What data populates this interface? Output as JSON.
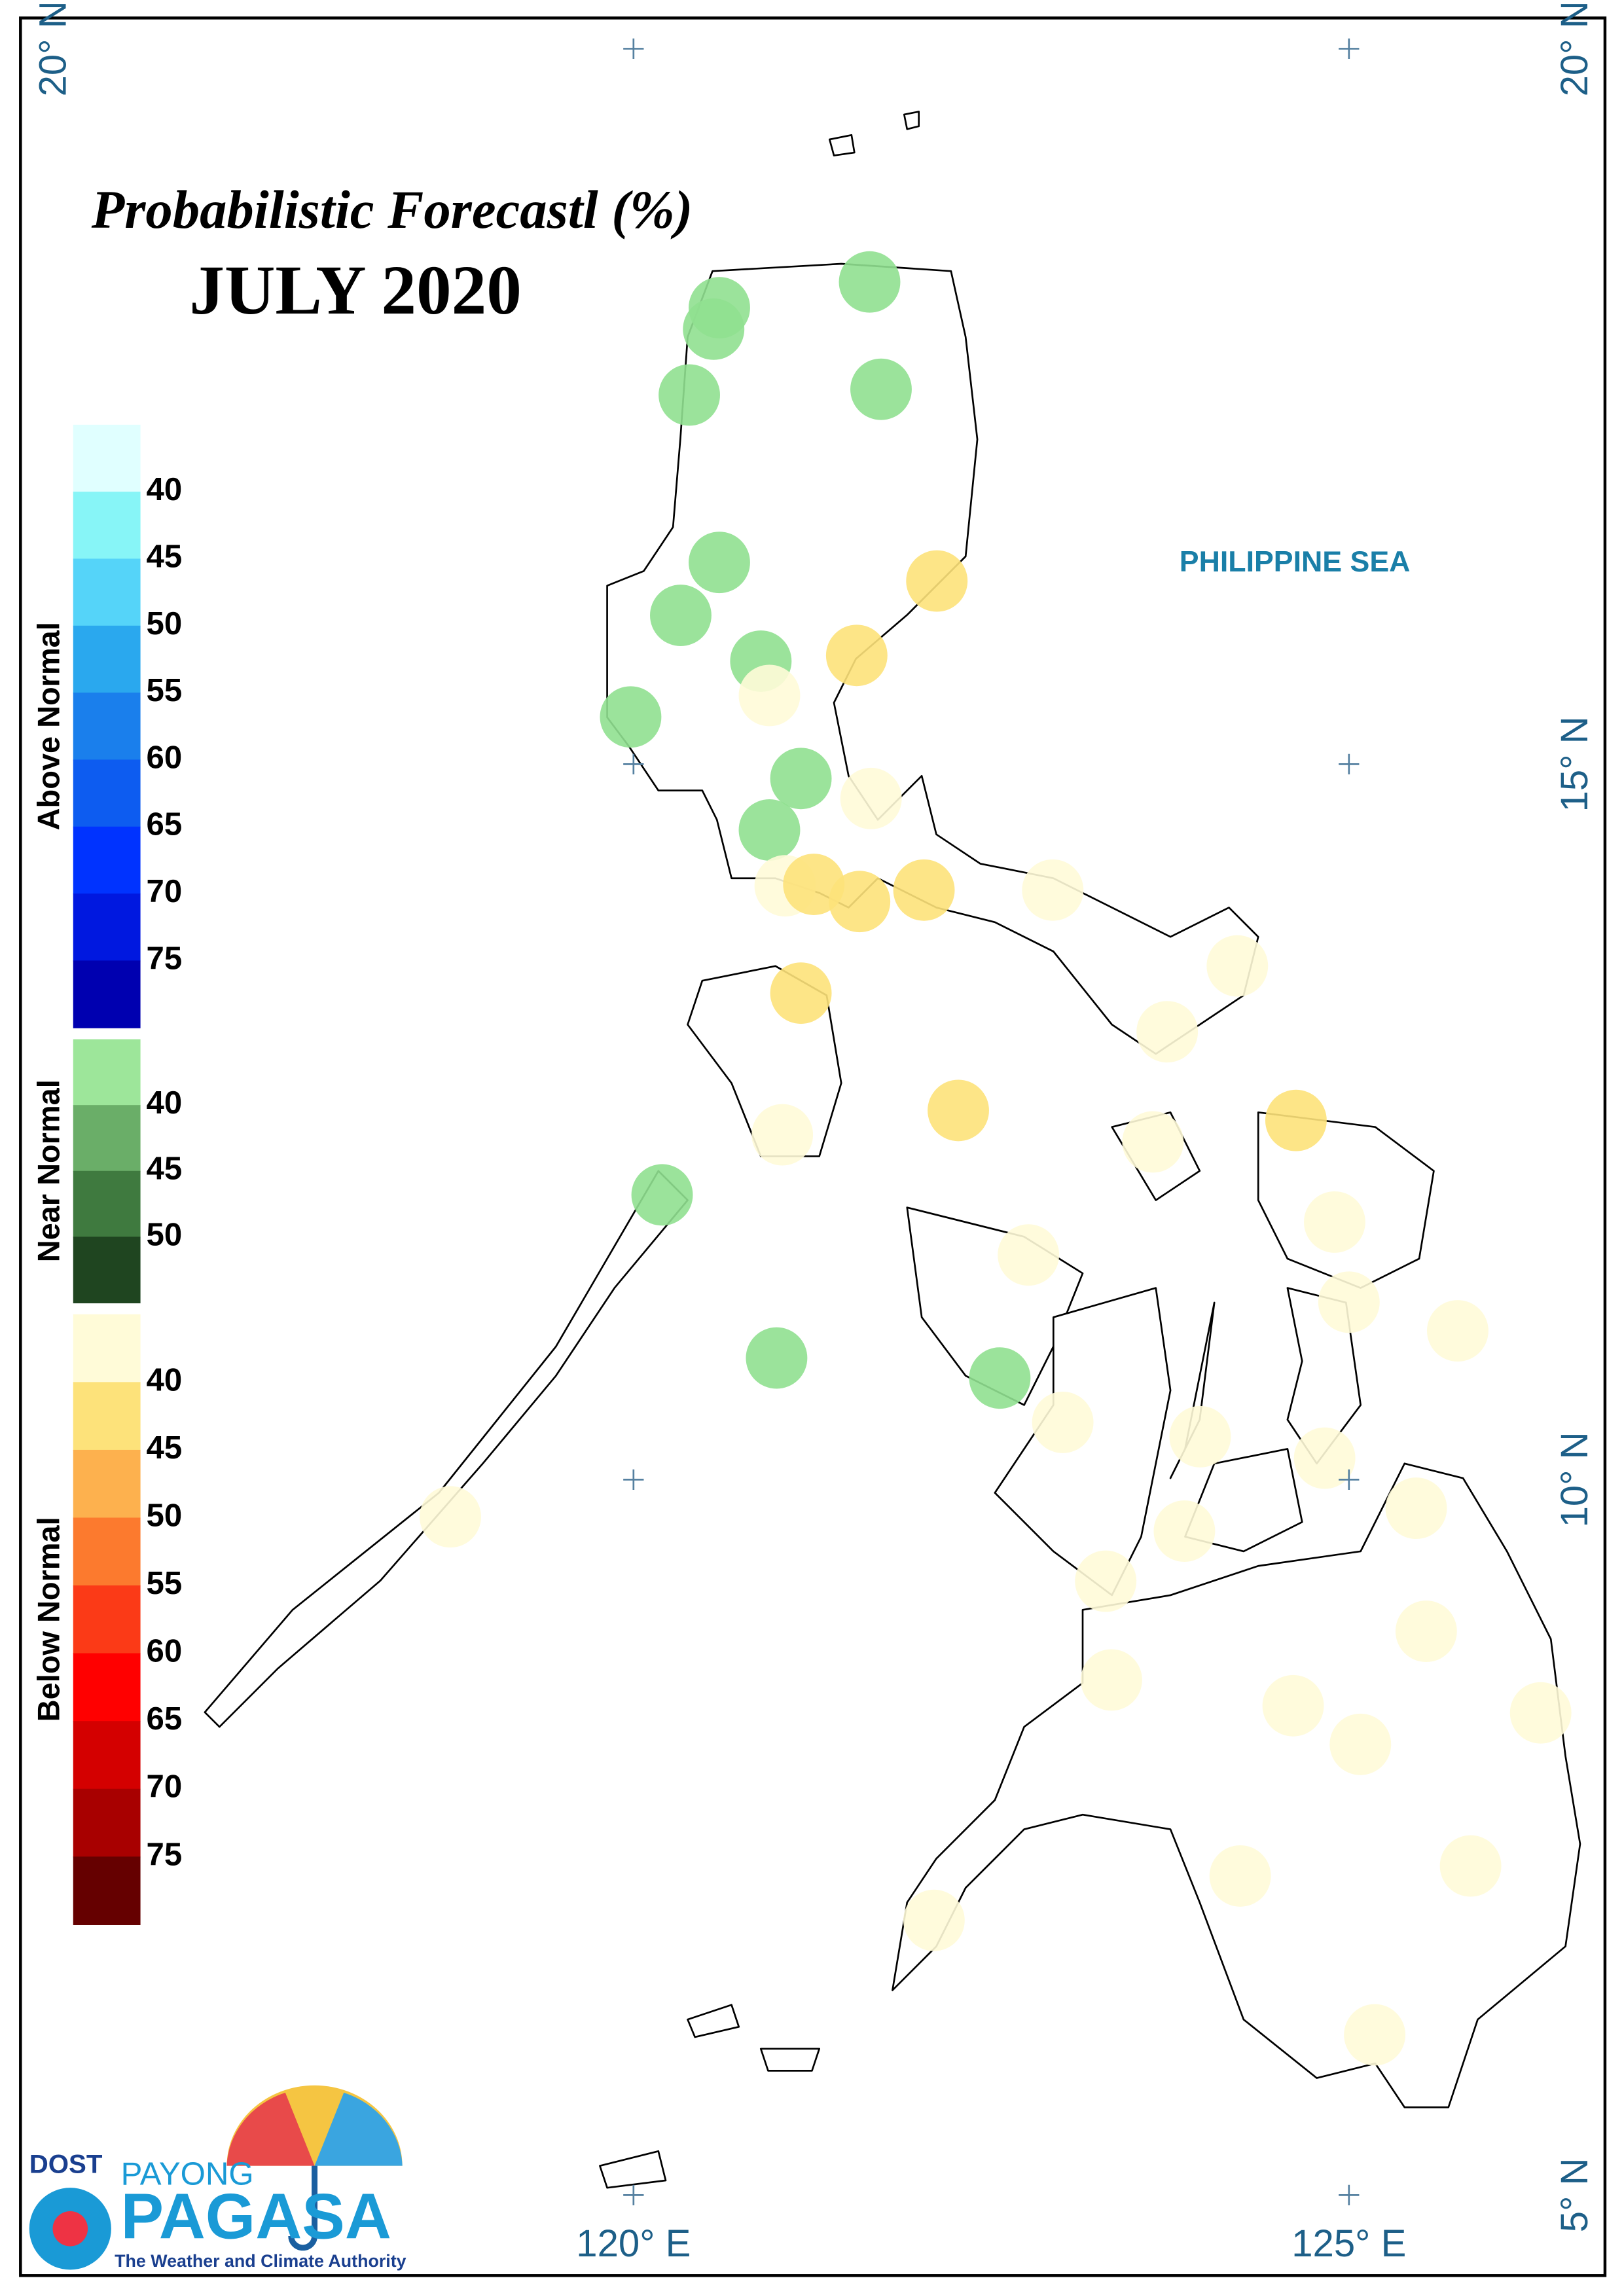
{
  "title": "Probabilistic Forecastl (%)",
  "subtitle": "JULY 2020",
  "sea_label": "PHILIPPINE SEA",
  "legend": [
    {
      "name": "Above Normal",
      "colors": [
        "#e0ffff",
        "#87f5f7",
        "#55d4f9",
        "#2aa8ee",
        "#1a7fec",
        "#0d5cf0",
        "#0033ff",
        "#0018e0",
        "#0000b0"
      ],
      "ticks": [
        40,
        45,
        50,
        55,
        60,
        65,
        70,
        75
      ]
    },
    {
      "name": "Near Normal",
      "colors": [
        "#9de69a",
        "#6aae68",
        "#3f7a3f",
        "#1f4520"
      ],
      "ticks": [
        40,
        45,
        50
      ]
    },
    {
      "name": "Below Normal",
      "colors": [
        "#fffbd8",
        "#fde27a",
        "#fdb14e",
        "#fc7a2e",
        "#fb3a17",
        "#ff0000",
        "#d40000",
        "#a80000",
        "#650000"
      ],
      "ticks": [
        40,
        45,
        50,
        55,
        60,
        65,
        70,
        75
      ]
    }
  ],
  "lon_ticks": [
    {
      "value": 120,
      "label": "120° E"
    },
    {
      "value": 125,
      "label": "125° E"
    }
  ],
  "lat_ticks": [
    {
      "value": 20,
      "label": "20° N"
    },
    {
      "value": 15,
      "label": "15° N"
    },
    {
      "value": 10,
      "label": "10° N"
    },
    {
      "value": 5,
      "label": "5° N"
    }
  ],
  "stations": [
    {
      "lon": 120.6,
      "lat": 18.19,
      "color": "#90e090"
    },
    {
      "lon": 120.56,
      "lat": 18.04,
      "color": "#90e090"
    },
    {
      "lon": 121.65,
      "lat": 18.37,
      "color": "#90e090"
    },
    {
      "lon": 120.39,
      "lat": 17.58,
      "color": "#90e090"
    },
    {
      "lon": 121.73,
      "lat": 17.62,
      "color": "#90e090"
    },
    {
      "lon": 120.6,
      "lat": 16.41,
      "color": "#90e090"
    },
    {
      "lon": 120.33,
      "lat": 16.04,
      "color": "#90e090"
    },
    {
      "lon": 122.12,
      "lat": 16.28,
      "color": "#fde27a"
    },
    {
      "lon": 120.89,
      "lat": 15.72,
      "color": "#90e090"
    },
    {
      "lon": 121.56,
      "lat": 15.76,
      "color": "#fde27a"
    },
    {
      "lon": 120.95,
      "lat": 15.48,
      "color": "#fffbd8"
    },
    {
      "lon": 119.98,
      "lat": 15.33,
      "color": "#90e090"
    },
    {
      "lon": 121.17,
      "lat": 14.9,
      "color": "#90e090"
    },
    {
      "lon": 121.66,
      "lat": 14.76,
      "color": "#fffbd8"
    },
    {
      "lon": 120.95,
      "lat": 14.54,
      "color": "#90e090"
    },
    {
      "lon": 121.06,
      "lat": 14.15,
      "color": "#fffbd8"
    },
    {
      "lon": 121.26,
      "lat": 14.16,
      "color": "#fde27a"
    },
    {
      "lon": 121.58,
      "lat": 14.04,
      "color": "#fde27a"
    },
    {
      "lon": 122.03,
      "lat": 14.12,
      "color": "#fde27a"
    },
    {
      "lon": 122.93,
      "lat": 14.12,
      "color": "#fffbd8"
    },
    {
      "lon": 124.22,
      "lat": 13.59,
      "color": "#fffbd8"
    },
    {
      "lon": 121.17,
      "lat": 13.4,
      "color": "#fde27a"
    },
    {
      "lon": 123.73,
      "lat": 13.13,
      "color": "#fffbd8"
    },
    {
      "lon": 122.27,
      "lat": 12.58,
      "color": "#fde27a"
    },
    {
      "lon": 124.63,
      "lat": 12.51,
      "color": "#fde27a"
    },
    {
      "lon": 121.04,
      "lat": 12.41,
      "color": "#fffbd8"
    },
    {
      "lon": 123.63,
      "lat": 12.36,
      "color": "#fffbd8"
    },
    {
      "lon": 120.2,
      "lat": 11.99,
      "color": "#90e090"
    },
    {
      "lon": 124.9,
      "lat": 11.8,
      "color": "#fffbd8"
    },
    {
      "lon": 122.76,
      "lat": 11.57,
      "color": "#fffbd8"
    },
    {
      "lon": 125.0,
      "lat": 11.24,
      "color": "#fffbd8"
    },
    {
      "lon": 125.76,
      "lat": 11.04,
      "color": "#fffbd8"
    },
    {
      "lon": 121.0,
      "lat": 10.85,
      "color": "#90e090"
    },
    {
      "lon": 122.56,
      "lat": 10.71,
      "color": "#90e090"
    },
    {
      "lon": 123.0,
      "lat": 10.4,
      "color": "#fffbd8"
    },
    {
      "lon": 123.96,
      "lat": 10.3,
      "color": "#fffbd8"
    },
    {
      "lon": 124.83,
      "lat": 10.15,
      "color": "#fffbd8"
    },
    {
      "lon": 118.72,
      "lat": 9.74,
      "color": "#fffbd8"
    },
    {
      "lon": 123.85,
      "lat": 9.64,
      "color": "#fffbd8"
    },
    {
      "lon": 125.47,
      "lat": 9.8,
      "color": "#fffbd8"
    },
    {
      "lon": 123.3,
      "lat": 9.29,
      "color": "#fffbd8"
    },
    {
      "lon": 125.54,
      "lat": 8.94,
      "color": "#fffbd8"
    },
    {
      "lon": 123.34,
      "lat": 8.6,
      "color": "#fffbd8"
    },
    {
      "lon": 124.61,
      "lat": 8.42,
      "color": "#fffbd8"
    },
    {
      "lon": 125.08,
      "lat": 8.15,
      "color": "#fffbd8"
    },
    {
      "lon": 126.34,
      "lat": 8.37,
      "color": "#fffbd8"
    },
    {
      "lon": 124.24,
      "lat": 7.23,
      "color": "#fffbd8"
    },
    {
      "lon": 125.85,
      "lat": 7.3,
      "color": "#fffbd8"
    },
    {
      "lon": 122.1,
      "lat": 6.92,
      "color": "#fffbd8"
    },
    {
      "lon": 125.18,
      "lat": 6.12,
      "color": "#fffbd8"
    }
  ],
  "logo": {
    "agency": "DOST",
    "top": "PAYONG",
    "name": "PAGASA",
    "tagline": "The Weather and Climate Authority"
  }
}
